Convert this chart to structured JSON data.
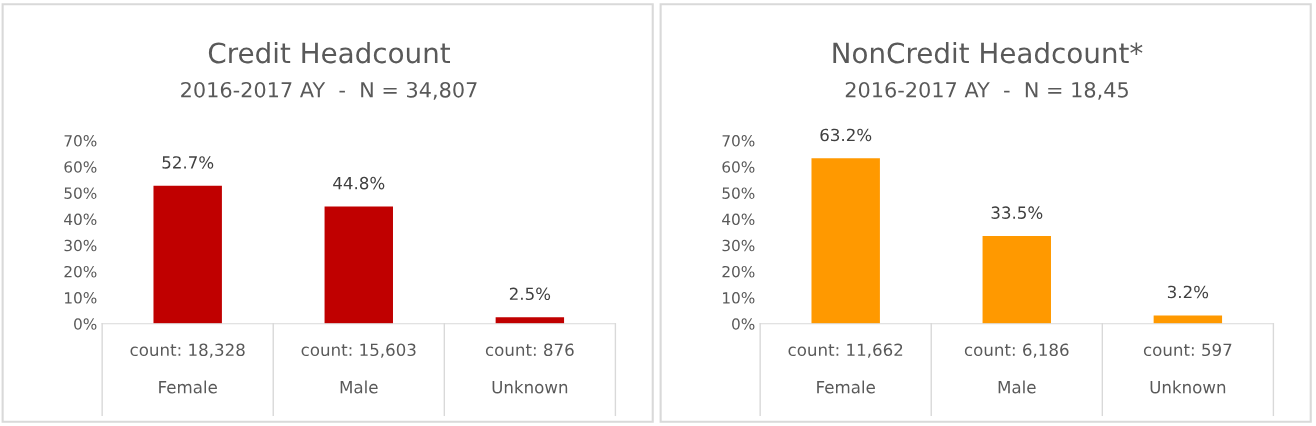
{
  "chart_data": [
    {
      "type": "bar",
      "title": "Credit Headcount",
      "subtitle": "2016-2017 AY  -  N = 34,807",
      "categories": [
        "count: 18,328\n\nFemale",
        "count: 15,603\n\nMale",
        "count: 876\n\nUnknown"
      ],
      "values": [
        52.7,
        44.8,
        2.5
      ],
      "value_labels": [
        "52.7%",
        "44.8%",
        "2.5%"
      ],
      "color": "#c00000",
      "ylim": [
        0,
        70
      ],
      "yticks": [
        {
          "value": 0,
          "label": "0%"
        },
        {
          "value": 10,
          "label": "10%"
        },
        {
          "value": 20,
          "label": "20%"
        },
        {
          "value": 30,
          "label": "30%"
        },
        {
          "value": 40,
          "label": "40%"
        },
        {
          "value": 50,
          "label": "50%"
        },
        {
          "value": 60,
          "label": "60%"
        },
        {
          "value": 70,
          "label": "70%"
        }
      ],
      "grid": false,
      "legend": false
    },
    {
      "type": "bar",
      "title": "NonCredit Headcount*",
      "subtitle": "2016-2017 AY  -  N = 18,45",
      "categories": [
        "count: 11,662\n\nFemale",
        "count: 6,186\n\nMale",
        "count: 597\n\nUnknown"
      ],
      "values": [
        63.2,
        33.5,
        3.2
      ],
      "value_labels": [
        "63.2%",
        "33.5%",
        "3.2%"
      ],
      "color": "#ff9900",
      "ylim": [
        0,
        70
      ],
      "yticks": [
        {
          "value": 0,
          "label": "0%"
        },
        {
          "value": 10,
          "label": "10%"
        },
        {
          "value": 20,
          "label": "20%"
        },
        {
          "value": 30,
          "label": "30%"
        },
        {
          "value": 40,
          "label": "40%"
        },
        {
          "value": 50,
          "label": "50%"
        },
        {
          "value": 60,
          "label": "60%"
        },
        {
          "value": 70,
          "label": "70%"
        }
      ],
      "grid": false,
      "legend": false
    }
  ]
}
